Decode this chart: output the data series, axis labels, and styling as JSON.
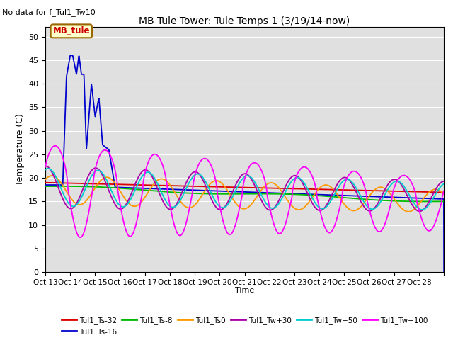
{
  "title": "MB Tule Tower: Tule Temps 1 (3/19/14-now)",
  "subtitle": "No data for f_Tul1_Tw10",
  "xlabel": "Time",
  "ylabel": "Temperature (C)",
  "ylim": [
    0,
    52
  ],
  "yticks": [
    0,
    5,
    10,
    15,
    20,
    25,
    30,
    35,
    40,
    45,
    50
  ],
  "bg_color": "#e0e0e0",
  "grid_color": "#ffffff",
  "series": [
    {
      "label": "Tul1_Ts-32",
      "color": "#dd0000",
      "lw": 1.3
    },
    {
      "label": "Tul1_Ts-16",
      "color": "#0000cc",
      "lw": 1.3
    },
    {
      "label": "Tul1_Ts-8",
      "color": "#00bb00",
      "lw": 1.3
    },
    {
      "label": "Tul1_Ts0",
      "color": "#ff9900",
      "lw": 1.3
    },
    {
      "label": "Tul1_Tw+30",
      "color": "#aa00aa",
      "lw": 1.3
    },
    {
      "label": "Tul1_Tw+50",
      "color": "#00cccc",
      "lw": 1.3
    },
    {
      "label": "Tul1_Tw+100",
      "color": "#ff00ff",
      "lw": 1.3
    }
  ],
  "xtick_labels": [
    "Oct 13",
    "Oct 14",
    "Oct 15",
    "Oct 16",
    "Oct 17",
    "Oct 18",
    "Oct 19",
    "Oct 20",
    "Oct 21",
    "Oct 22",
    "Oct 23",
    "Oct 24",
    "Oct 25",
    "Oct 26",
    "Oct 27",
    "Oct 28"
  ],
  "legend_box": {
    "label": "MB_tule",
    "fc": "#ffffcc",
    "ec": "#996600",
    "tc": "#cc0000"
  }
}
